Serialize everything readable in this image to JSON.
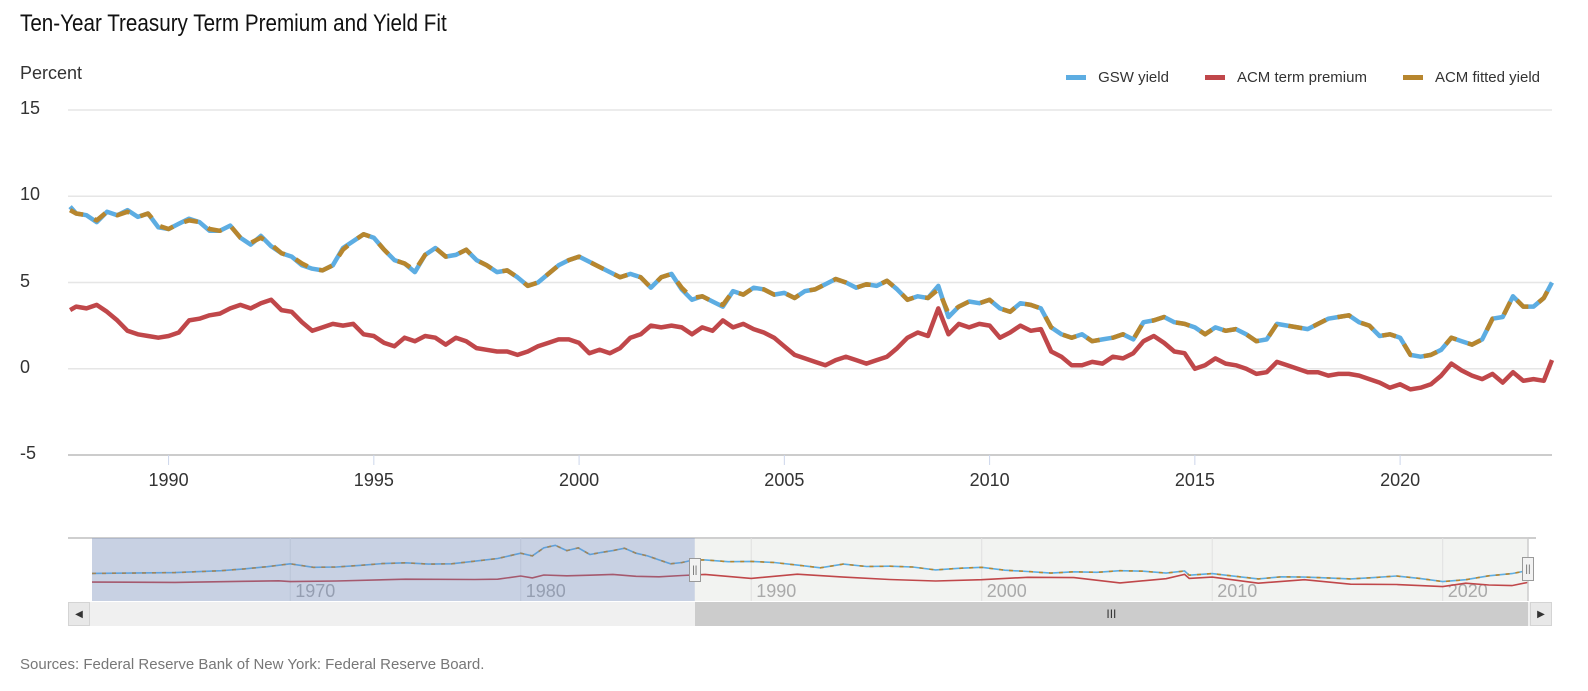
{
  "title": "Ten-Year Treasury Term Premium and Yield Fit",
  "source": "Sources: Federal Reserve Bank of New York: Federal Reserve Board.",
  "navigator": {
    "tick_labels": [
      "1970",
      "1980",
      "1990",
      "2000",
      "2010",
      "2020"
    ],
    "tick_years": [
      1970,
      1980,
      1990,
      2000,
      2010,
      2020
    ],
    "range": [
      1961.4,
      2023.7
    ],
    "selected_range": [
      1987.55,
      2023.7
    ],
    "handle_glyph": "||",
    "scroll_left_icon": "◀",
    "scroll_right_icon": "▶",
    "thumb_grip": "III",
    "series": {
      "yield_x": [
        1961.4,
        1963,
        1965,
        1967,
        1968,
        1969,
        1970,
        1971,
        1972,
        1973,
        1974,
        1975,
        1976,
        1977,
        1978,
        1979,
        1980,
        1980.5,
        1981,
        1981.5,
        1982,
        1982.5,
        1983,
        1983.5,
        1984,
        1984.5,
        1985,
        1985.5,
        1986,
        1986.5,
        1987,
        1987.5,
        1988,
        1989,
        1990,
        1991,
        1992,
        1993,
        1994,
        1995,
        1996,
        1997,
        1998,
        1999,
        2000,
        2001,
        2002,
        2003,
        2004,
        2005,
        2006,
        2007,
        2008,
        2008.8,
        2009,
        2010,
        2011,
        2012,
        2013,
        2014,
        2015,
        2016,
        2017,
        2018,
        2019,
        2020,
        2021,
        2022,
        2023,
        2023.7
      ],
      "yield": [
        3.9,
        4.0,
        4.2,
        4.9,
        5.6,
        6.4,
        7.5,
        6.2,
        6.3,
        6.9,
        7.6,
        7.9,
        7.4,
        7.5,
        8.5,
        9.5,
        11.5,
        10.5,
        13.5,
        14.5,
        12.5,
        13.5,
        11.0,
        11.8,
        12.5,
        13.4,
        11.5,
        10.5,
        9.0,
        7.5,
        8.0,
        9.0,
        9.0,
        8.3,
        8.4,
        8.0,
        7.0,
        6.0,
        7.4,
        6.5,
        6.6,
        6.3,
        5.2,
        5.8,
        6.2,
        5.1,
        4.6,
        4.0,
        4.5,
        4.3,
        4.9,
        4.7,
        4.0,
        4.8,
        3.2,
        3.8,
        2.8,
        1.8,
        2.6,
        2.5,
        2.2,
        1.8,
        2.3,
        2.9,
        2.0,
        0.8,
        1.5,
        3.0,
        3.8,
        5.0
      ],
      "tp_x": [
        1961.4,
        1965,
        1968,
        1969.5,
        1970,
        1972,
        1975,
        1978,
        1979,
        1980,
        1980.5,
        1981,
        1982,
        1983,
        1984,
        1985,
        1986,
        1987,
        1988,
        1990,
        1992,
        1994,
        1996,
        1998,
        2000,
        2002,
        2004,
        2006,
        2008,
        2008.8,
        2009,
        2010,
        2012,
        2014,
        2016,
        2018,
        2020,
        2021,
        2022,
        2023,
        2023.7
      ],
      "tp": [
        0.6,
        0.5,
        0.9,
        1.1,
        0.8,
        1.0,
        1.7,
        1.6,
        1.7,
        2.9,
        2.2,
        3.3,
        3.0,
        3.2,
        3.5,
        2.8,
        2.6,
        3.1,
        3.5,
        2.0,
        3.6,
        2.5,
        1.6,
        1.0,
        1.5,
        2.4,
        2.3,
        0.3,
        1.9,
        3.5,
        2.0,
        2.5,
        0.2,
        1.5,
        -0.2,
        -0.3,
        -1.1,
        0.2,
        -0.5,
        -0.7,
        0.5
      ]
    }
  },
  "chart_data": {
    "type": "line",
    "title": "Ten-Year Treasury Term Premium and Yield Fit",
    "xlabel": "",
    "ylabel": "Percent",
    "xlim": [
      1987.55,
      2023.7
    ],
    "ylim": [
      -5,
      15
    ],
    "yticks": [
      -5,
      0,
      5,
      10,
      15
    ],
    "ytick_labels": [
      "-5",
      "0",
      "5",
      "10",
      "15"
    ],
    "xticks": [
      1990,
      1995,
      2000,
      2005,
      2010,
      2015,
      2020
    ],
    "xtick_labels": [
      "1990",
      "1995",
      "2000",
      "2005",
      "2010",
      "2015",
      "2020"
    ],
    "grid": true,
    "legend_position": "top-right",
    "legend": [
      {
        "name": "GSW yield",
        "color": "#5DADE2"
      },
      {
        "name": "ACM term premium",
        "color": "#C0474A"
      },
      {
        "name": "ACM fitted yield",
        "color": "#B7862E"
      }
    ],
    "x": [
      1987.6,
      1987.75,
      1988,
      1988.25,
      1988.5,
      1988.75,
      1989,
      1989.25,
      1989.5,
      1989.75,
      1990,
      1990.25,
      1990.5,
      1990.75,
      1991,
      1991.25,
      1991.5,
      1991.75,
      1992,
      1992.25,
      1992.5,
      1992.75,
      1993,
      1993.25,
      1993.5,
      1993.75,
      1994,
      1994.25,
      1994.5,
      1994.75,
      1995,
      1995.25,
      1995.5,
      1995.75,
      1996,
      1996.25,
      1996.5,
      1996.75,
      1997,
      1997.25,
      1997.5,
      1997.75,
      1998,
      1998.25,
      1998.5,
      1998.75,
      1999,
      1999.25,
      1999.5,
      1999.75,
      2000,
      2000.25,
      2000.5,
      2000.75,
      2001,
      2001.25,
      2001.5,
      2001.75,
      2002,
      2002.25,
      2002.5,
      2002.75,
      2003,
      2003.25,
      2003.5,
      2003.75,
      2004,
      2004.25,
      2004.5,
      2004.75,
      2005,
      2005.25,
      2005.5,
      2005.75,
      2006,
      2006.25,
      2006.5,
      2006.75,
      2007,
      2007.25,
      2007.5,
      2007.75,
      2008,
      2008.25,
      2008.5,
      2008.75,
      2009,
      2009.25,
      2009.5,
      2009.75,
      2010,
      2010.25,
      2010.5,
      2010.75,
      2011,
      2011.25,
      2011.5,
      2011.75,
      2012,
      2012.25,
      2012.5,
      2012.75,
      2013,
      2013.25,
      2013.5,
      2013.75,
      2014,
      2014.25,
      2014.5,
      2014.75,
      2015,
      2015.25,
      2015.5,
      2015.75,
      2016,
      2016.25,
      2016.5,
      2016.75,
      2017,
      2017.25,
      2017.5,
      2017.75,
      2018,
      2018.25,
      2018.5,
      2018.75,
      2019,
      2019.25,
      2019.5,
      2019.75,
      2020,
      2020.25,
      2020.5,
      2020.75,
      2021,
      2021.25,
      2021.5,
      2021.75,
      2022,
      2022.25,
      2022.5,
      2022.75,
      2023,
      2023.25,
      2023.5,
      2023.7
    ],
    "series": [
      {
        "name": "GSW yield",
        "values": [
          9.4,
          9.0,
          8.9,
          8.5,
          9.1,
          8.9,
          9.2,
          8.8,
          9.0,
          8.2,
          8.1,
          8.4,
          8.7,
          8.5,
          8.0,
          8.0,
          8.3,
          7.6,
          7.2,
          7.7,
          7.1,
          6.7,
          6.5,
          6.0,
          5.8,
          5.7,
          6.0,
          7.0,
          7.4,
          7.8,
          7.6,
          6.9,
          6.3,
          6.1,
          5.6,
          6.6,
          7.0,
          6.5,
          6.6,
          6.9,
          6.3,
          6.0,
          5.6,
          5.7,
          5.3,
          4.8,
          5.0,
          5.5,
          6.0,
          6.3,
          6.5,
          6.2,
          5.9,
          5.6,
          5.3,
          5.5,
          5.3,
          4.7,
          5.3,
          5.5,
          4.6,
          4.0,
          4.2,
          3.9,
          3.6,
          4.5,
          4.3,
          4.7,
          4.6,
          4.3,
          4.4,
          4.1,
          4.5,
          4.6,
          4.9,
          5.2,
          5.0,
          4.7,
          4.9,
          4.8,
          5.1,
          4.6,
          4.0,
          4.2,
          4.1,
          4.8,
          3.0,
          3.6,
          3.9,
          3.8,
          4.0,
          3.5,
          3.3,
          3.8,
          3.7,
          3.5,
          2.4,
          2.0,
          1.8,
          2.0,
          1.6,
          1.7,
          1.8,
          2.0,
          1.7,
          2.7,
          2.8,
          3.0,
          2.7,
          2.6,
          2.4,
          2.0,
          2.4,
          2.2,
          2.3,
          2.0,
          1.6,
          1.7,
          2.6,
          2.5,
          2.4,
          2.3,
          2.6,
          2.9,
          3.0,
          3.1,
          2.7,
          2.5,
          1.9,
          2.0,
          1.8,
          0.8,
          0.7,
          0.8,
          1.1,
          1.8,
          1.6,
          1.4,
          1.7,
          2.9,
          3.0,
          4.2,
          3.6,
          3.6,
          4.1,
          5.0
        ]
      },
      {
        "name": "ACM term premium",
        "values": [
          3.4,
          3.6,
          3.5,
          3.7,
          3.3,
          2.8,
          2.2,
          2.0,
          1.9,
          1.8,
          1.9,
          2.1,
          2.8,
          2.9,
          3.1,
          3.2,
          3.5,
          3.7,
          3.5,
          3.8,
          4.0,
          3.4,
          3.3,
          2.7,
          2.2,
          2.4,
          2.6,
          2.5,
          2.6,
          2.0,
          1.9,
          1.5,
          1.3,
          1.8,
          1.6,
          1.9,
          1.8,
          1.4,
          1.8,
          1.6,
          1.2,
          1.1,
          1.0,
          1.0,
          0.8,
          1.0,
          1.3,
          1.5,
          1.7,
          1.7,
          1.5,
          0.9,
          1.1,
          0.9,
          1.2,
          1.8,
          2.0,
          2.5,
          2.4,
          2.5,
          2.4,
          2.0,
          2.4,
          2.2,
          2.8,
          2.4,
          2.6,
          2.3,
          2.1,
          1.8,
          1.3,
          0.8,
          0.6,
          0.4,
          0.2,
          0.5,
          0.7,
          0.5,
          0.3,
          0.5,
          0.7,
          1.2,
          1.8,
          2.1,
          1.9,
          3.5,
          2.0,
          2.6,
          2.4,
          2.6,
          2.5,
          1.8,
          2.1,
          2.5,
          2.2,
          2.3,
          1.0,
          0.7,
          0.2,
          0.2,
          0.4,
          0.3,
          0.7,
          0.6,
          0.9,
          1.6,
          1.9,
          1.5,
          1.0,
          0.9,
          0.0,
          0.2,
          0.6,
          0.3,
          0.2,
          0.0,
          -0.3,
          -0.2,
          0.4,
          0.2,
          0.0,
          -0.2,
          -0.2,
          -0.4,
          -0.3,
          -0.3,
          -0.4,
          -0.6,
          -0.8,
          -1.1,
          -0.9,
          -1.2,
          -1.1,
          -0.9,
          -0.4,
          0.3,
          -0.1,
          -0.4,
          -0.6,
          -0.3,
          -0.8,
          -0.2,
          -0.7,
          -0.6,
          -0.7,
          0.5
        ]
      },
      {
        "name": "ACM fitted yield",
        "values": [
          9.2,
          9.0,
          8.9,
          8.6,
          9.1,
          8.9,
          9.1,
          8.8,
          9.0,
          8.3,
          8.1,
          8.4,
          8.6,
          8.5,
          8.1,
          8.0,
          8.3,
          7.6,
          7.3,
          7.6,
          7.2,
          6.7,
          6.5,
          6.1,
          5.8,
          5.7,
          6.0,
          6.9,
          7.4,
          7.8,
          7.6,
          6.9,
          6.3,
          6.1,
          5.7,
          6.6,
          7.0,
          6.5,
          6.6,
          6.9,
          6.3,
          6.0,
          5.6,
          5.7,
          5.3,
          4.8,
          5.0,
          5.5,
          6.0,
          6.3,
          6.5,
          6.2,
          5.9,
          5.6,
          5.3,
          5.5,
          5.3,
          4.7,
          5.3,
          5.5,
          4.7,
          4.1,
          4.2,
          3.9,
          3.7,
          4.5,
          4.3,
          4.7,
          4.6,
          4.3,
          4.4,
          4.1,
          4.5,
          4.6,
          4.9,
          5.2,
          5.0,
          4.7,
          4.9,
          4.8,
          5.1,
          4.6,
          4.0,
          4.2,
          4.1,
          4.6,
          3.2,
          3.6,
          3.9,
          3.8,
          4.0,
          3.5,
          3.3,
          3.8,
          3.7,
          3.5,
          2.4,
          2.0,
          1.8,
          2.0,
          1.6,
          1.7,
          1.8,
          2.0,
          1.7,
          2.7,
          2.8,
          3.0,
          2.7,
          2.6,
          2.4,
          2.0,
          2.4,
          2.2,
          2.3,
          2.0,
          1.6,
          1.7,
          2.6,
          2.5,
          2.4,
          2.3,
          2.6,
          2.9,
          3.0,
          3.1,
          2.7,
          2.5,
          1.9,
          2.0,
          1.8,
          0.8,
          0.7,
          0.8,
          1.1,
          1.8,
          1.6,
          1.4,
          1.7,
          2.9,
          3.0,
          4.2,
          3.6,
          3.6,
          4.1,
          5.0
        ]
      }
    ]
  }
}
